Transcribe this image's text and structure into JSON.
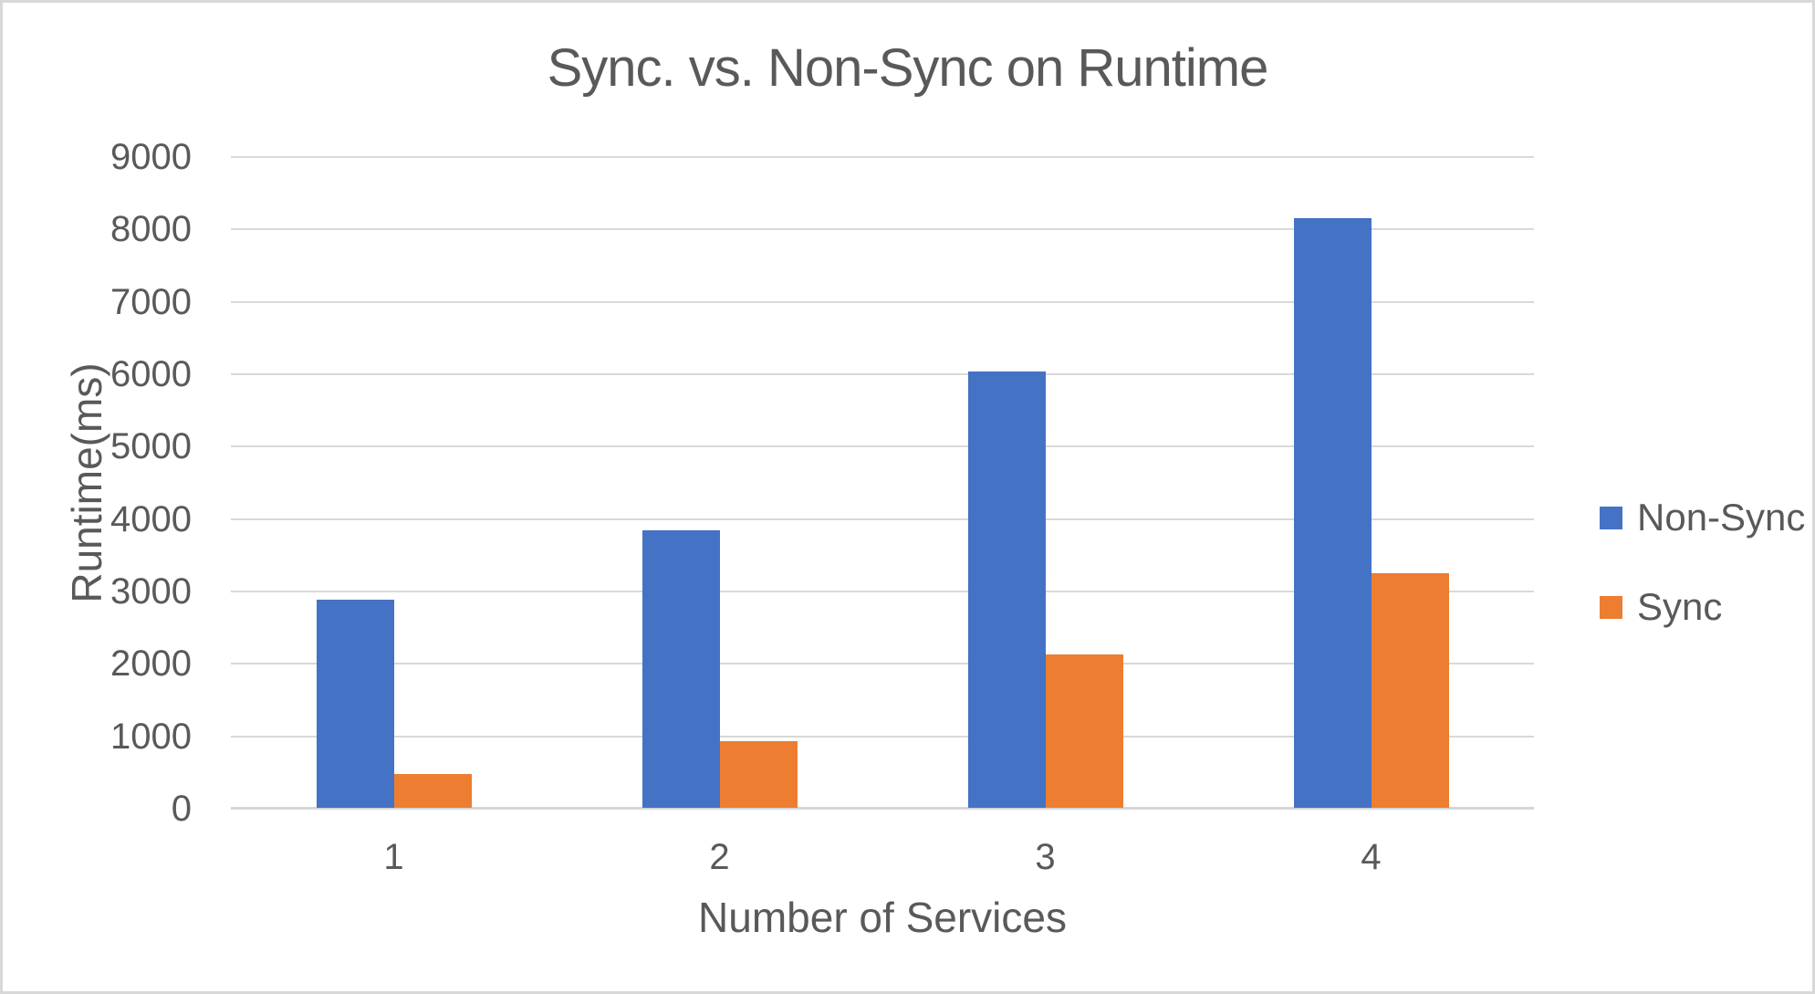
{
  "window": {
    "background": "#ffffff",
    "border_color": "#d8d8d8"
  },
  "chart_data": {
    "type": "bar",
    "title": "Sync. vs. Non-Sync on Runtime",
    "xlabel": "Number of Services",
    "ylabel": "Runtime(ms)",
    "categories": [
      "1",
      "2",
      "3",
      "4"
    ],
    "series": [
      {
        "name": "Non-Sync",
        "color": "#4472C4",
        "values": [
          2880,
          3830,
          6020,
          8140
        ]
      },
      {
        "name": "Sync",
        "color": "#ED7D31",
        "values": [
          470,
          920,
          2120,
          3240
        ]
      }
    ],
    "ylim": [
      0,
      9000
    ],
    "ytick_step": 1000,
    "yticks": [
      "0",
      "1000",
      "2000",
      "3000",
      "4000",
      "5000",
      "6000",
      "7000",
      "8000",
      "9000"
    ],
    "grid": "horizontal",
    "legend_position": "right",
    "gridline_color": "#d9d9d9",
    "axis_line_color": "#d6d6d6",
    "text_color": "#595959"
  }
}
